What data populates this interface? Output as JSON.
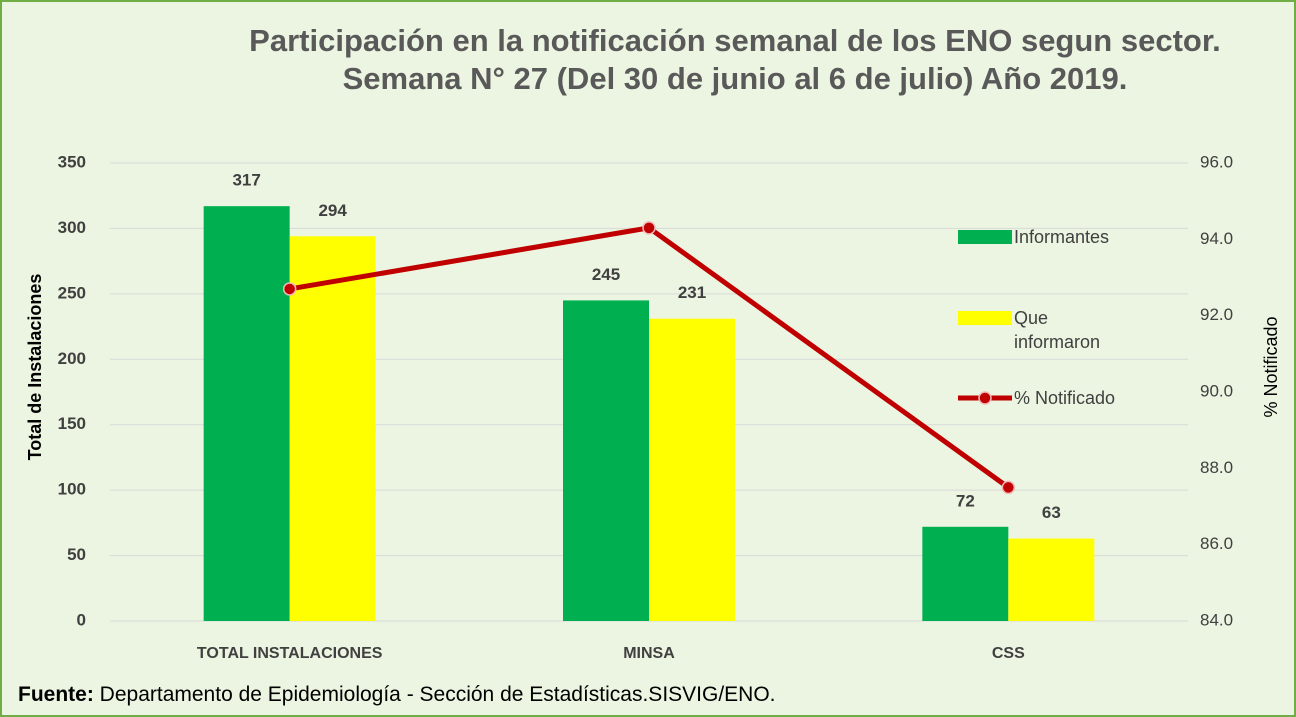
{
  "chart_data": {
    "type": "bar",
    "title": "Participación en la notificación semanal  de los ENO segun sector.",
    "subtitle": "Semana N° 27 (Del 30 de junio al 6 de julio) Año 2019.",
    "y_label": "Total de Instalaciones",
    "y2_label": "% Notificado",
    "categories": [
      "TOTAL INSTALACIONES",
      "MINSA",
      "CSS"
    ],
    "series": [
      {
        "name": "Informantes",
        "color": "#00b050",
        "values": [
          317,
          245,
          72
        ]
      },
      {
        "name": "Que informaron",
        "color": "#ffff00",
        "values": [
          294,
          231,
          63
        ]
      },
      {
        "name": "% Notificado",
        "color": "#c00000",
        "type": "line",
        "axis": "y2",
        "values": [
          92.7,
          94.3,
          87.5
        ]
      }
    ],
    "ylim": [
      0,
      350
    ],
    "yticks": [
      0,
      50,
      100,
      150,
      200,
      250,
      300,
      350
    ],
    "y2lim": [
      84,
      96
    ],
    "y2ticks": [
      {
        "value": 84,
        "label": "84.0"
      },
      {
        "value": 86,
        "label": "86.0"
      },
      {
        "value": 88,
        "label": "88.0"
      },
      {
        "value": 90,
        "label": "90.0"
      },
      {
        "value": 92,
        "label": "92.0"
      },
      {
        "value": 94,
        "label": "94.0"
      },
      {
        "value": 96,
        "label": "96.0"
      }
    ],
    "grid": true,
    "legend": "right",
    "source": {
      "label": "Fuente:",
      "text": "Departamento de Epidemiología - Sección de Estadísticas.SISVIG/ENO."
    }
  }
}
